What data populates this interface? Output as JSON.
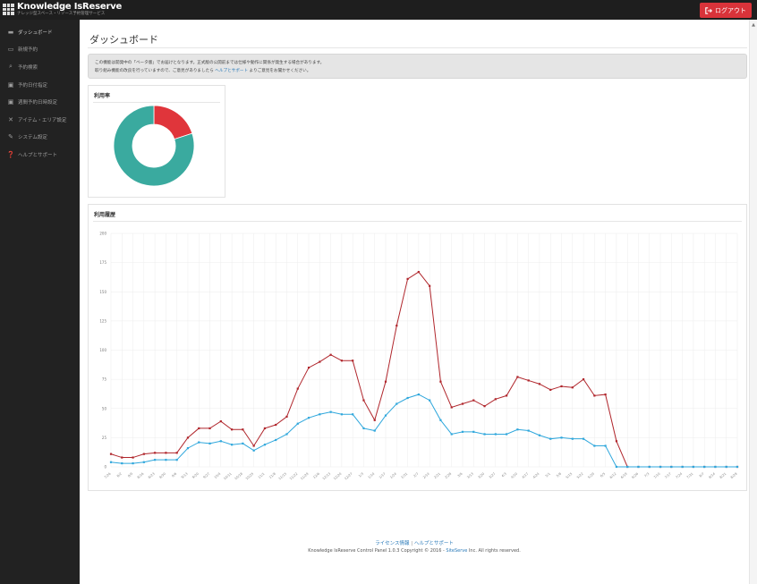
{
  "header": {
    "app_name": "Knowledge IsReserve",
    "app_subtitle": "ナレッジ型スペース・リソース予約管理サービス",
    "logout_label": "ログアウト"
  },
  "sidebar": {
    "items": [
      {
        "label": "ダッシュボード",
        "icon": "dashboard-icon",
        "active": true
      },
      {
        "label": "新規予約",
        "icon": "calendar-icon"
      },
      {
        "label": "予約検索",
        "icon": "search-icon"
      },
      {
        "label": "予約日付指定",
        "icon": "calendar-check-icon"
      },
      {
        "label": "週間予約日時設定",
        "icon": "calendar-week-icon"
      },
      {
        "label": "アイテム・エリア設定",
        "icon": "tools-icon"
      },
      {
        "label": "システム設定",
        "icon": "wrench-icon"
      },
      {
        "label": "ヘルプとサポート",
        "icon": "help-icon"
      }
    ]
  },
  "page": {
    "title": "ダッシュボード",
    "notice_line1": "この機能は開発中の「ベータ版」でお届けとなります。正式版の公開前までは仕様や動作に関係が発生する場合があります。",
    "notice_line2_pre": "取り組み機能の改良を行っていますので、ご意見がありましたら",
    "notice_link": "ヘルプとサポート",
    "notice_line2_post": "よりご意見をお聞かせください。"
  },
  "usage_panel": {
    "title": "利用率"
  },
  "history_panel": {
    "title": "利用履歴"
  },
  "footer": {
    "link1": "ライセンス情報",
    "separator": "|",
    "link2": "ヘルプとサポート",
    "copyright_pre": "Knowledge IsReserve Control Panel 1.0.3 Copyright © 2016 - ",
    "company": "SiteServe",
    "copyright_post": " Inc. All rights reserved."
  },
  "colors": {
    "accent_red": "#d9333a",
    "teal": "#3aaa9f",
    "line_red": "#b0262c",
    "line_blue": "#2fa7dc"
  },
  "chart_data": [
    {
      "type": "pie",
      "title": "利用率",
      "slices": [
        {
          "name": "used",
          "value": 20,
          "color": "#e0353b"
        },
        {
          "name": "available",
          "value": 80,
          "color": "#3aaa9f"
        }
      ]
    },
    {
      "type": "line",
      "title": "利用履歴",
      "ylim": [
        0,
        200
      ],
      "yticks": [
        "200",
        "175",
        "150",
        "125",
        "100",
        "75",
        "50",
        "25",
        "0"
      ],
      "categories": [
        "7/26",
        "8/2",
        "8/9",
        "8/16",
        "8/23",
        "8/30",
        "9/6",
        "9/13",
        "9/20",
        "9/27",
        "10/4",
        "10/11",
        "10/18",
        "10/25",
        "11/1",
        "11/8",
        "11/15",
        "11/22",
        "11/29",
        "12/6",
        "12/13",
        "12/20",
        "12/27",
        "1/3",
        "1/10",
        "1/17",
        "1/24",
        "1/31",
        "2/7",
        "2/14",
        "2/21",
        "2/28",
        "3/6",
        "3/13",
        "3/20",
        "3/27",
        "4/3",
        "4/10",
        "4/17",
        "4/24",
        "5/1",
        "5/8",
        "5/15",
        "5/22",
        "5/29",
        "6/5",
        "6/12",
        "6/19",
        "6/26",
        "7/3",
        "7/10",
        "7/17",
        "7/24",
        "7/31",
        "8/7",
        "8/14",
        "8/21",
        "8/28"
      ],
      "series": [
        {
          "color": "#b0262c",
          "values": [
            11,
            8,
            8,
            11,
            12,
            12,
            12,
            25,
            33,
            33,
            39,
            32,
            32,
            18,
            33,
            36,
            43,
            67,
            85,
            90,
            96,
            91,
            91,
            57,
            40,
            73,
            121,
            161,
            167,
            155,
            73,
            51,
            54,
            57,
            52,
            58,
            61,
            77,
            74,
            71,
            66,
            69,
            68,
            75,
            61,
            62,
            22,
            0,
            0,
            0,
            0,
            0,
            0,
            0,
            0,
            0,
            0,
            0
          ]
        },
        {
          "color": "#2fa7dc",
          "values": [
            4,
            3,
            3,
            4,
            6,
            6,
            6,
            16,
            21,
            20,
            22,
            19,
            20,
            14,
            19,
            23,
            28,
            37,
            42,
            45,
            47,
            45,
            45,
            33,
            31,
            44,
            54,
            59,
            62,
            57,
            40,
            28,
            30,
            30,
            28,
            28,
            28,
            32,
            31,
            27,
            24,
            25,
            24,
            24,
            18,
            18,
            0,
            0,
            0,
            0,
            0,
            0,
            0,
            0,
            0,
            0,
            0,
            0
          ]
        }
      ]
    }
  ]
}
